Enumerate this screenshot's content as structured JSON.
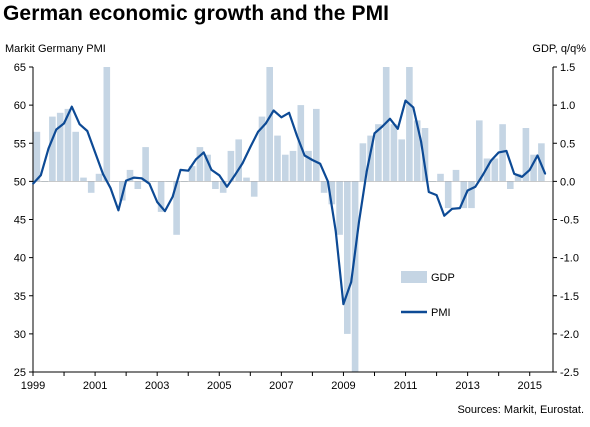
{
  "chart_data": {
    "type": "bar+line",
    "title": "German economic growth and the PMI",
    "left_axis_label": "Markit Germany PMI",
    "right_axis_label": "GDP, q/q%",
    "source": "Sources: Markit, Eurostat.",
    "x_range": [
      1999.0,
      2015.75
    ],
    "x_ticks": [
      "1999",
      "2001",
      "2003",
      "2005",
      "2007",
      "2009",
      "2011",
      "2013",
      "2015"
    ],
    "left_axis": {
      "min": 25,
      "max": 65,
      "ticks": [
        "65",
        "60",
        "55",
        "50",
        "45",
        "40",
        "35",
        "30",
        "25"
      ]
    },
    "right_axis": {
      "min": -2.5,
      "max": 1.5,
      "ticks": [
        "1.5",
        "1.0",
        "0.5",
        "0.0",
        "-0.5",
        "-1.0",
        "-1.5",
        "-2.0",
        "-2.5"
      ]
    },
    "colors": {
      "gdp": "#c5d5e4",
      "pmi": "#0d4a95",
      "zero_line": "#999999"
    },
    "legend": {
      "gdp": "GDP",
      "pmi": "PMI"
    },
    "gdp_series": {
      "name": "GDP",
      "quarters": [
        "1999 Q1",
        "1999 Q2",
        "1999 Q3",
        "1999 Q4",
        "2000 Q1",
        "2000 Q2",
        "2000 Q3",
        "2000 Q4",
        "2001 Q1",
        "2001 Q2",
        "2001 Q3",
        "2001 Q4",
        "2002 Q1",
        "2002 Q2",
        "2002 Q3",
        "2002 Q4",
        "2003 Q1",
        "2003 Q2",
        "2003 Q3",
        "2003 Q4",
        "2004 Q1",
        "2004 Q2",
        "2004 Q3",
        "2004 Q4",
        "2005 Q1",
        "2005 Q2",
        "2005 Q3",
        "2005 Q4",
        "2006 Q1",
        "2006 Q2",
        "2006 Q3",
        "2006 Q4",
        "2007 Q1",
        "2007 Q2",
        "2007 Q3",
        "2007 Q4",
        "2008 Q1",
        "2008 Q2",
        "2008 Q3",
        "2008 Q4",
        "2009 Q1",
        "2009 Q2",
        "2009 Q3",
        "2009 Q4",
        "2010 Q1",
        "2010 Q2",
        "2010 Q3",
        "2010 Q4",
        "2011 Q1",
        "2011 Q2",
        "2011 Q3",
        "2011 Q4",
        "2012 Q1",
        "2012 Q2",
        "2012 Q3",
        "2012 Q4",
        "2013 Q1",
        "2013 Q2",
        "2013 Q3",
        "2013 Q4",
        "2014 Q1",
        "2014 Q2",
        "2014 Q3",
        "2014 Q4",
        "2015 Q1",
        "2015 Q2"
      ],
      "values": [
        0.65,
        0.0,
        0.85,
        0.9,
        0.95,
        0.65,
        0.05,
        -0.15,
        0.1,
        1.5,
        0.0,
        -0.25,
        0.15,
        -0.1,
        0.45,
        0.0,
        -0.4,
        0.0,
        -0.7,
        0.0,
        0.2,
        0.45,
        0.35,
        -0.1,
        -0.15,
        0.4,
        0.55,
        0.05,
        -0.2,
        0.85,
        1.5,
        0.6,
        0.35,
        0.4,
        1.0,
        0.4,
        0.95,
        -0.15,
        -0.3,
        -0.7,
        -2.0,
        -2.5,
        0.5,
        0.6,
        0.75,
        1.5,
        0.75,
        0.55,
        1.5,
        0.8,
        0.7,
        0.0,
        0.1,
        -0.35,
        0.15,
        -0.35,
        -0.35,
        0.8,
        0.3,
        0.3,
        0.75,
        -0.1,
        0.1,
        0.7,
        0.35,
        0.5
      ]
    },
    "pmi_series": {
      "name": "PMI",
      "x": [
        1999.0,
        1999.25,
        1999.5,
        1999.75,
        2000.0,
        2000.25,
        2000.5,
        2000.75,
        2001.0,
        2001.25,
        2001.5,
        2001.75,
        2002.0,
        2002.25,
        2002.5,
        2002.75,
        2003.0,
        2003.25,
        2003.5,
        2003.75,
        2004.0,
        2004.25,
        2004.5,
        2004.75,
        2005.0,
        2005.25,
        2005.5,
        2005.75,
        2006.0,
        2006.25,
        2006.5,
        2006.75,
        2007.0,
        2007.25,
        2007.5,
        2007.75,
        2008.0,
        2008.25,
        2008.5,
        2008.75,
        2009.0,
        2009.25,
        2009.5,
        2009.75,
        2010.0,
        2010.25,
        2010.5,
        2010.75,
        2011.0,
        2011.25,
        2011.5,
        2011.75,
        2012.0,
        2012.25,
        2012.5,
        2012.75,
        2013.0,
        2013.25,
        2013.5,
        2013.75,
        2014.0,
        2014.25,
        2014.5,
        2014.75,
        2015.0,
        2015.25,
        2015.5
      ],
      "values": [
        49.7,
        50.8,
        54.3,
        56.8,
        57.6,
        59.8,
        57.5,
        56.6,
        53.8,
        51.0,
        49.1,
        46.2,
        50.1,
        50.5,
        50.4,
        49.7,
        47.3,
        46.1,
        48.0,
        51.5,
        51.4,
        52.9,
        53.8,
        51.5,
        50.8,
        49.3,
        50.8,
        52.4,
        54.5,
        56.5,
        57.6,
        59.3,
        58.4,
        59.0,
        56.0,
        53.4,
        52.8,
        52.3,
        50.0,
        43.5,
        33.9,
        36.8,
        44.7,
        51.3,
        56.3,
        57.2,
        58.2,
        56.9,
        60.6,
        59.7,
        55.2,
        48.6,
        48.2,
        45.5,
        46.4,
        46.5,
        48.8,
        49.3,
        50.9,
        52.7,
        53.8,
        54.0,
        51.0,
        50.6,
        51.5,
        53.4,
        51.0
      ]
    }
  }
}
